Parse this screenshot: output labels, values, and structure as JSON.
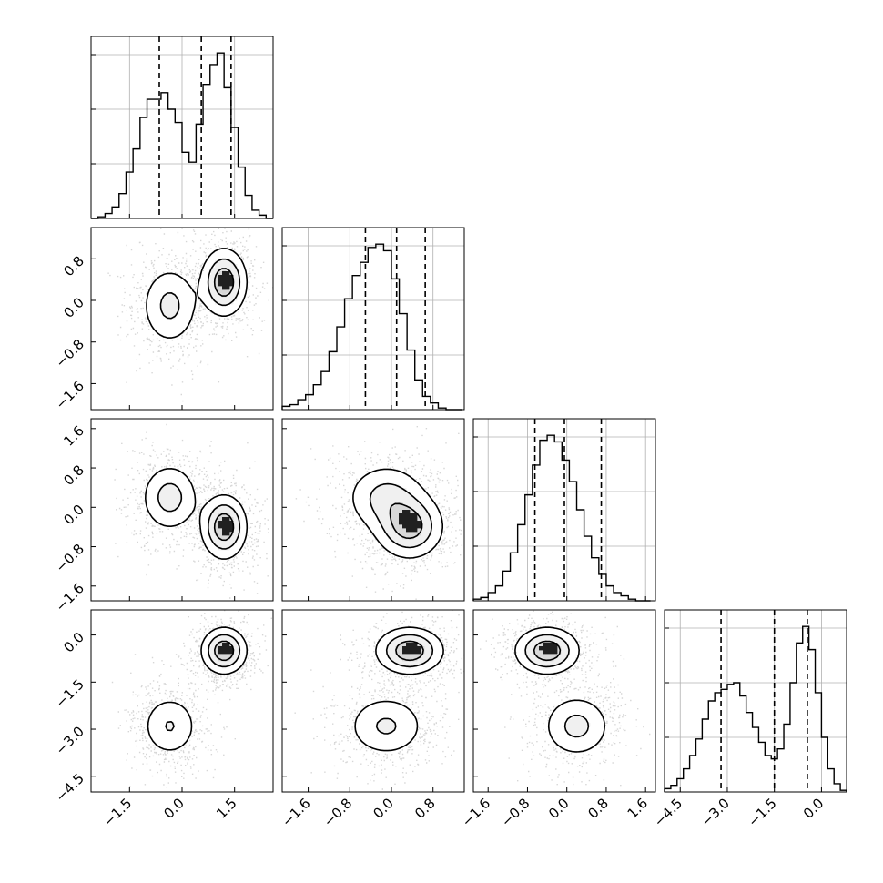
{
  "chart_data": {
    "type": "corner",
    "n_dims": 4,
    "grid": true,
    "colors": {
      "line": "#000000",
      "grid": "#b0b0b0",
      "axes": "#000000",
      "background": "#ffffff"
    },
    "ranges": [
      [
        -2.6,
        2.6
      ],
      [
        -2.1,
        1.4
      ],
      [
        -1.9,
        1.8
      ],
      [
        -5.0,
        0.8
      ]
    ],
    "ticks": [
      {
        "values": [
          -1.5,
          0.0,
          1.5
        ],
        "labels": [
          "−1.5",
          "0.0",
          "1.5"
        ]
      },
      {
        "values": [
          -1.6,
          -0.8,
          0.0,
          0.8
        ],
        "labels": [
          "−1.6",
          "−0.8",
          "0.0",
          "0.8"
        ]
      },
      {
        "values": [
          -1.6,
          -0.8,
          0.0,
          0.8,
          1.6
        ],
        "labels": [
          "−1.6",
          "−0.8",
          "0.0",
          "0.8",
          "1.6"
        ]
      },
      {
        "values": [
          -4.5,
          -3.0,
          -1.5,
          0.0
        ],
        "labels": [
          "−4.5",
          "−3.0",
          "−1.5",
          "0.0"
        ]
      }
    ],
    "quantiles": [
      [
        -0.65,
        0.55,
        1.4
      ],
      [
        -0.5,
        0.1,
        0.65
      ],
      [
        -0.65,
        -0.05,
        0.7
      ],
      [
        -3.2,
        -1.5,
        -0.45
      ]
    ],
    "histograms": [
      {
        "dim": 0,
        "bins": [
          -2.6,
          -2.4,
          -2.2,
          -2.0,
          -1.8,
          -1.6,
          -1.4,
          -1.2,
          -1.0,
          -0.8,
          -0.6,
          -0.4,
          -0.2,
          0.0,
          0.2,
          0.4,
          0.6,
          0.8,
          1.0,
          1.2,
          1.4,
          1.6,
          1.8,
          2.0,
          2.2,
          2.4,
          2.6
        ],
        "counts": [
          0.0,
          0.01,
          0.03,
          0.07,
          0.15,
          0.28,
          0.42,
          0.61,
          0.72,
          0.72,
          0.76,
          0.66,
          0.58,
          0.4,
          0.34,
          0.57,
          0.81,
          0.93,
          1.0,
          0.79,
          0.55,
          0.31,
          0.14,
          0.05,
          0.02,
          0.0
        ]
      },
      {
        "dim": 1,
        "bins": [
          -2.1,
          -1.95,
          -1.8,
          -1.65,
          -1.5,
          -1.35,
          -1.2,
          -1.05,
          -0.9,
          -0.75,
          -0.6,
          -0.45,
          -0.3,
          -0.15,
          0.0,
          0.15,
          0.3,
          0.45,
          0.6,
          0.75,
          0.9,
          1.05,
          1.2,
          1.35
        ],
        "counts": [
          0.02,
          0.03,
          0.06,
          0.09,
          0.15,
          0.23,
          0.35,
          0.5,
          0.67,
          0.81,
          0.89,
          0.98,
          1.0,
          0.96,
          0.79,
          0.58,
          0.36,
          0.18,
          0.08,
          0.04,
          0.01,
          0.0,
          0.0
        ]
      },
      {
        "dim": 2,
        "bins": [
          -1.9,
          -1.75,
          -1.6,
          -1.45,
          -1.3,
          -1.15,
          -1.0,
          -0.85,
          -0.7,
          -0.55,
          -0.4,
          -0.25,
          -0.1,
          0.05,
          0.2,
          0.35,
          0.5,
          0.65,
          0.8,
          0.95,
          1.1,
          1.25,
          1.4,
          1.55,
          1.7
        ],
        "counts": [
          0.01,
          0.02,
          0.05,
          0.09,
          0.18,
          0.29,
          0.46,
          0.64,
          0.82,
          0.97,
          1.0,
          0.96,
          0.85,
          0.72,
          0.55,
          0.39,
          0.26,
          0.16,
          0.09,
          0.05,
          0.03,
          0.01,
          0.0,
          0.0
        ]
      },
      {
        "dim": 3,
        "bins": [
          -5.0,
          -4.8,
          -4.6,
          -4.4,
          -4.2,
          -4.0,
          -3.8,
          -3.6,
          -3.4,
          -3.2,
          -3.0,
          -2.8,
          -2.6,
          -2.4,
          -2.2,
          -2.0,
          -1.8,
          -1.6,
          -1.4,
          -1.2,
          -1.0,
          -0.8,
          -0.6,
          -0.4,
          -0.2,
          0.0,
          0.2,
          0.4,
          0.6,
          0.8
        ],
        "counts": [
          0.02,
          0.04,
          0.08,
          0.14,
          0.22,
          0.32,
          0.44,
          0.55,
          0.6,
          0.62,
          0.65,
          0.66,
          0.58,
          0.48,
          0.39,
          0.3,
          0.22,
          0.2,
          0.26,
          0.41,
          0.66,
          0.9,
          1.0,
          0.86,
          0.6,
          0.33,
          0.14,
          0.05,
          0.01
        ]
      }
    ],
    "density_model": {
      "components": [
        {
          "weight": 0.55,
          "mean": [
            1.2,
            0.35,
            -0.4,
            -0.5
          ],
          "std": [
            0.35,
            0.35,
            0.35,
            0.4
          ]
        },
        {
          "weight": 0.45,
          "mean": [
            -0.35,
            -0.1,
            0.2,
            -2.9
          ],
          "std": [
            0.45,
            0.42,
            0.38,
            0.55
          ]
        }
      ]
    },
    "contour_levels": [
      0.18,
      0.45,
      0.75
    ]
  }
}
